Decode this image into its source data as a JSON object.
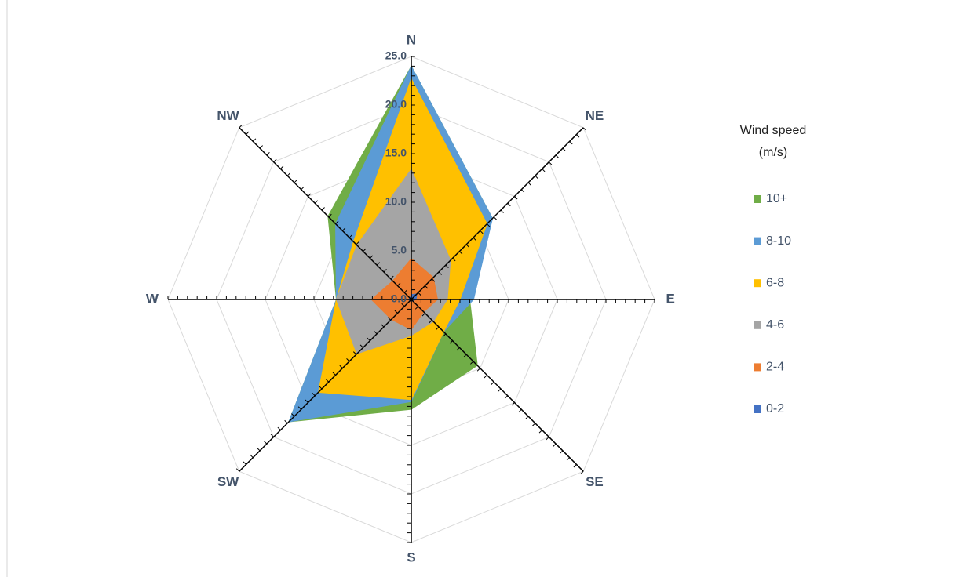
{
  "chart_data": {
    "type": "radar",
    "categories": [
      "N",
      "NE",
      "E",
      "SE",
      "S",
      "SW",
      "W",
      "NW"
    ],
    "series": [
      {
        "name": "10+",
        "color": "#70ad47",
        "values": [
          24.0,
          11.8,
          6.0,
          9.6,
          11.3,
          17.8,
          7.7,
          12.1
        ]
      },
      {
        "name": "8-10",
        "color": "#5b9bd5",
        "values": [
          24.0,
          11.8,
          6.4,
          4.7,
          10.5,
          17.8,
          7.7,
          11.0
        ]
      },
      {
        "name": "6-8",
        "color": "#ffc000",
        "values": [
          22.7,
          11.0,
          5.0,
          4.7,
          10.3,
          13.5,
          7.7,
          8.4
        ]
      },
      {
        "name": "4-6",
        "color": "#a5a5a5",
        "values": [
          13.4,
          5.7,
          3.7,
          3.2,
          3.7,
          7.9,
          7.7,
          7.9
        ]
      },
      {
        "name": "2-4",
        "color": "#ed7d31",
        "values": [
          4.2,
          3.2,
          2.7,
          1.8,
          3.1,
          2.9,
          4.1,
          2.7
        ]
      },
      {
        "name": "0-2",
        "color": "#4472c4",
        "values": [
          0.5,
          0.8,
          0.5,
          0.2,
          0.2,
          0.2,
          0.3,
          0.2
        ]
      }
    ],
    "ylim": [
      0,
      25
    ],
    "yticks": [
      {
        "value": 0,
        "label": "0.0"
      },
      {
        "value": 5,
        "label": "5.0"
      },
      {
        "value": 10,
        "label": "10.0"
      },
      {
        "value": 15,
        "label": "15.0"
      },
      {
        "value": 20,
        "label": "20.0"
      },
      {
        "value": 25,
        "label": "25.0"
      }
    ],
    "grid": true,
    "minor_ticks": true,
    "legend_title": [
      "Wind speed",
      "(m/s)"
    ],
    "legend": "right"
  }
}
